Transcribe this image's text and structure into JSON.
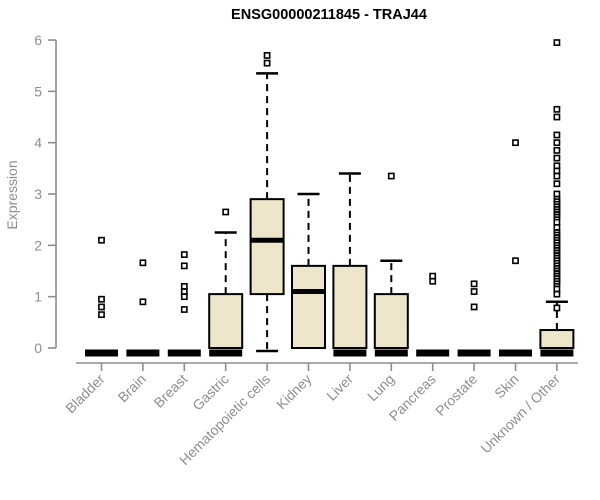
{
  "chart_data": {
    "type": "boxplot",
    "title": "ENSG00000211845 - TRAJ44",
    "xlabel": "",
    "ylabel": "Expression",
    "ylim": [
      0,
      6
    ],
    "yticks": [
      0,
      1,
      2,
      3,
      4,
      5,
      6
    ],
    "grid": false,
    "legend": "none",
    "colors": {
      "box_fill": "#EDE6CB",
      "box_stroke": "#000000",
      "median": "#000000",
      "axis": "#8e8e8e",
      "tick_label": "#8e8e8e",
      "title": "#000000",
      "outlier": "#000000",
      "background": "#ffffff"
    },
    "categories": [
      "Bladder",
      "Brain",
      "Breast",
      "Gastric",
      "Hematopoietic cells",
      "Kidney",
      "Liver",
      "Lung",
      "Pancreas",
      "Prostate",
      "Skin",
      "Unknown / Other"
    ],
    "series": [
      {
        "category": "Bladder",
        "q1": 0,
        "median": 0,
        "q3": 0,
        "whisker_low": 0,
        "whisker_high": 0,
        "outliers": [
          0.65,
          0.8,
          0.95,
          2.1
        ]
      },
      {
        "category": "Brain",
        "q1": 0,
        "median": 0,
        "q3": 0,
        "whisker_low": 0,
        "whisker_high": 0,
        "outliers": [
          0.9,
          1.66
        ]
      },
      {
        "category": "Breast",
        "q1": 0,
        "median": 0,
        "q3": 0,
        "whisker_low": 0,
        "whisker_high": 0,
        "outliers": [
          0.75,
          1.0,
          1.1,
          1.2,
          1.6,
          1.82
        ]
      },
      {
        "category": "Gastric",
        "q1": 0,
        "median": 0,
        "q3": 1.05,
        "whisker_low": 0,
        "whisker_high": 2.25,
        "outliers": [
          2.65
        ]
      },
      {
        "category": "Hematopoietic cells",
        "q1": 1.05,
        "median": 2.1,
        "q3": 2.9,
        "whisker_low": 0,
        "whisker_high": 5.35,
        "outliers": [
          5.55,
          5.7
        ]
      },
      {
        "category": "Kidney",
        "q1": 0,
        "median": 1.1,
        "q3": 1.6,
        "whisker_low": 0,
        "whisker_high": 3.0,
        "outliers": []
      },
      {
        "category": "Liver",
        "q1": 0,
        "median": 0,
        "q3": 1.6,
        "whisker_low": 0,
        "whisker_high": 3.4,
        "outliers": []
      },
      {
        "category": "Lung",
        "q1": 0,
        "median": 0,
        "q3": 1.05,
        "whisker_low": 0,
        "whisker_high": 1.7,
        "outliers": [
          3.35
        ]
      },
      {
        "category": "Pancreas",
        "q1": 0,
        "median": 0,
        "q3": 0,
        "whisker_low": 0,
        "whisker_high": 0,
        "outliers": [
          1.3,
          1.4
        ]
      },
      {
        "category": "Prostate",
        "q1": 0,
        "median": 0,
        "q3": 0,
        "whisker_low": 0,
        "whisker_high": 0,
        "outliers": [
          0.8,
          1.1,
          1.25
        ]
      },
      {
        "category": "Skin",
        "q1": 0,
        "median": 0,
        "q3": 0,
        "whisker_low": 0,
        "whisker_high": 0,
        "outliers": [
          1.7,
          4.0
        ]
      },
      {
        "category": "Unknown / Other",
        "q1": 0,
        "median": 0,
        "q3": 0.35,
        "whisker_low": 0,
        "whisker_high": 0.9,
        "outliers": [
          0.78,
          1.05,
          1.15,
          1.25,
          1.3,
          1.35,
          1.4,
          1.45,
          1.5,
          1.55,
          1.6,
          1.65,
          1.7,
          1.75,
          1.8,
          1.85,
          1.9,
          1.95,
          2.0,
          2.05,
          2.1,
          2.15,
          2.2,
          2.25,
          2.35,
          2.45,
          2.55,
          2.6,
          2.65,
          2.7,
          2.75,
          2.8,
          2.85,
          2.9,
          3.0,
          3.2,
          3.35,
          3.45,
          3.55,
          3.7,
          3.85,
          4.0,
          4.15,
          4.5,
          4.65,
          5.95
        ]
      }
    ]
  }
}
